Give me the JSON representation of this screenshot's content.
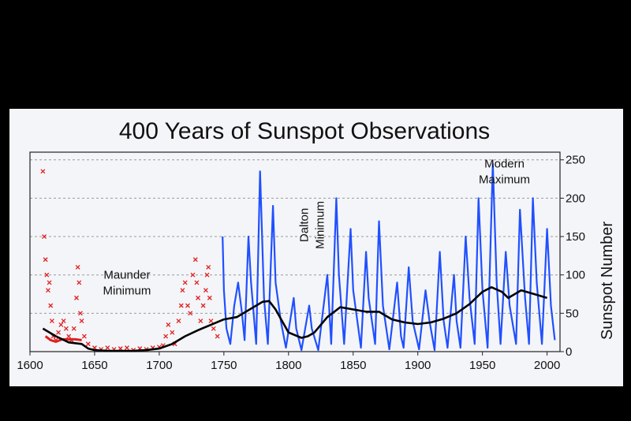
{
  "chart_data": {
    "type": "line",
    "title": "400 Years of Sunspot Observations",
    "ylabel": "Sunspot Number",
    "xlim": [
      1600,
      2010
    ],
    "ylim": [
      0,
      260
    ],
    "x_ticks": [
      1600,
      1650,
      1700,
      1750,
      1800,
      1850,
      1900,
      1950,
      2000
    ],
    "y_ticks": [
      0,
      50,
      100,
      150,
      200,
      250
    ],
    "y_axis_side": "right",
    "grid": "horizontal dashed",
    "colors": {
      "early_observations": "#e02020",
      "group_sunspot": "#2050ff",
      "smoothed": "#000000"
    },
    "annotations": [
      {
        "lines": [
          "Maunder",
          "Minimum"
        ],
        "x": 1675,
        "y": 95,
        "orientation": "horizontal"
      },
      {
        "lines": [
          "Dalton",
          "Minimum"
        ],
        "x": 1815,
        "y": 165,
        "orientation": "vertical"
      },
      {
        "lines": [
          "Modern",
          "Maximum"
        ],
        "x": 1967,
        "y": 240,
        "orientation": "horizontal"
      }
    ],
    "series": [
      {
        "kind": "scatter",
        "points": [
          [
            1610,
            235
          ],
          [
            1611,
            150
          ],
          [
            1612,
            120
          ],
          [
            1613,
            100
          ],
          [
            1614,
            80
          ],
          [
            1615,
            90
          ],
          [
            1616,
            60
          ],
          [
            1617,
            40
          ],
          [
            1618,
            20
          ],
          [
            1620,
            15
          ],
          [
            1622,
            25
          ],
          [
            1624,
            35
          ],
          [
            1626,
            40
          ],
          [
            1628,
            30
          ],
          [
            1630,
            20
          ],
          [
            1632,
            15
          ],
          [
            1634,
            30
          ],
          [
            1636,
            70
          ],
          [
            1637,
            110
          ],
          [
            1638,
            90
          ],
          [
            1639,
            50
          ],
          [
            1640,
            40
          ],
          [
            1642,
            20
          ],
          [
            1645,
            10
          ],
          [
            1650,
            5
          ],
          [
            1655,
            3
          ],
          [
            1660,
            5
          ],
          [
            1665,
            3
          ],
          [
            1670,
            4
          ],
          [
            1675,
            5
          ],
          [
            1680,
            2
          ],
          [
            1685,
            4
          ],
          [
            1690,
            3
          ],
          [
            1695,
            5
          ],
          [
            1700,
            6
          ],
          [
            1703,
            8
          ],
          [
            1705,
            20
          ],
          [
            1707,
            35
          ],
          [
            1710,
            25
          ],
          [
            1712,
            10
          ],
          [
            1715,
            40
          ],
          [
            1717,
            60
          ],
          [
            1718,
            80
          ],
          [
            1720,
            90
          ],
          [
            1722,
            60
          ],
          [
            1724,
            50
          ],
          [
            1726,
            100
          ],
          [
            1728,
            120
          ],
          [
            1729,
            90
          ],
          [
            1730,
            70
          ],
          [
            1732,
            40
          ],
          [
            1734,
            60
          ],
          [
            1736,
            80
          ],
          [
            1737,
            100
          ],
          [
            1738,
            110
          ],
          [
            1739,
            70
          ],
          [
            1740,
            40
          ],
          [
            1742,
            30
          ],
          [
            1745,
            20
          ]
        ]
      },
      {
        "kind": "line",
        "points": [
          [
            1612,
            20
          ],
          [
            1616,
            15
          ],
          [
            1620,
            13
          ],
          [
            1625,
            16
          ],
          [
            1630,
            16
          ],
          [
            1635,
            16
          ],
          [
            1640,
            15
          ]
        ]
      },
      {
        "kind": "line",
        "points": [
          [
            1749,
            150
          ],
          [
            1750,
            80
          ],
          [
            1752,
            30
          ],
          [
            1755,
            10
          ],
          [
            1758,
            60
          ],
          [
            1761,
            90
          ],
          [
            1764,
            50
          ],
          [
            1766,
            15
          ],
          [
            1769,
            150
          ],
          [
            1771,
            90
          ],
          [
            1775,
            10
          ],
          [
            1778,
            235
          ],
          [
            1779,
            180
          ],
          [
            1781,
            70
          ],
          [
            1784,
            10
          ],
          [
            1788,
            190
          ],
          [
            1790,
            90
          ],
          [
            1794,
            40
          ],
          [
            1798,
            5
          ],
          [
            1804,
            70
          ],
          [
            1806,
            30
          ],
          [
            1810,
            2
          ],
          [
            1816,
            60
          ],
          [
            1818,
            30
          ],
          [
            1823,
            2
          ],
          [
            1830,
            100
          ],
          [
            1833,
            10
          ],
          [
            1837,
            200
          ],
          [
            1839,
            100
          ],
          [
            1843,
            10
          ],
          [
            1848,
            160
          ],
          [
            1850,
            80
          ],
          [
            1856,
            5
          ],
          [
            1860,
            130
          ],
          [
            1862,
            70
          ],
          [
            1867,
            10
          ],
          [
            1870,
            170
          ],
          [
            1873,
            60
          ],
          [
            1878,
            3
          ],
          [
            1884,
            90
          ],
          [
            1887,
            20
          ],
          [
            1889,
            5
          ],
          [
            1893,
            110
          ],
          [
            1896,
            40
          ],
          [
            1901,
            3
          ],
          [
            1906,
            80
          ],
          [
            1909,
            40
          ],
          [
            1913,
            2
          ],
          [
            1917,
            130
          ],
          [
            1920,
            40
          ],
          [
            1923,
            5
          ],
          [
            1928,
            100
          ],
          [
            1930,
            40
          ],
          [
            1933,
            5
          ],
          [
            1937,
            150
          ],
          [
            1940,
            70
          ],
          [
            1944,
            10
          ],
          [
            1947,
            200
          ],
          [
            1950,
            80
          ],
          [
            1954,
            5
          ],
          [
            1958,
            245
          ],
          [
            1961,
            90
          ],
          [
            1964,
            10
          ],
          [
            1968,
            130
          ],
          [
            1971,
            60
          ],
          [
            1976,
            10
          ],
          [
            1979,
            185
          ],
          [
            1983,
            70
          ],
          [
            1986,
            10
          ],
          [
            1989,
            200
          ],
          [
            1992,
            90
          ],
          [
            1996,
            10
          ],
          [
            2000,
            160
          ],
          [
            2003,
            60
          ],
          [
            2006,
            15
          ]
        ]
      },
      {
        "kind": "line",
        "points": [
          [
            1610,
            30
          ],
          [
            1620,
            20
          ],
          [
            1630,
            12
          ],
          [
            1640,
            10
          ],
          [
            1645,
            4
          ],
          [
            1650,
            2
          ],
          [
            1660,
            1
          ],
          [
            1670,
            1
          ],
          [
            1680,
            1
          ],
          [
            1690,
            2
          ],
          [
            1700,
            4
          ],
          [
            1710,
            10
          ],
          [
            1720,
            20
          ],
          [
            1730,
            28
          ],
          [
            1740,
            35
          ],
          [
            1750,
            42
          ],
          [
            1760,
            45
          ],
          [
            1770,
            55
          ],
          [
            1780,
            65
          ],
          [
            1785,
            66
          ],
          [
            1790,
            55
          ],
          [
            1795,
            40
          ],
          [
            1800,
            25
          ],
          [
            1810,
            18
          ],
          [
            1815,
            20
          ],
          [
            1820,
            25
          ],
          [
            1830,
            45
          ],
          [
            1840,
            58
          ],
          [
            1850,
            55
          ],
          [
            1860,
            52
          ],
          [
            1870,
            52
          ],
          [
            1880,
            42
          ],
          [
            1890,
            38
          ],
          [
            1900,
            36
          ],
          [
            1910,
            38
          ],
          [
            1920,
            43
          ],
          [
            1930,
            50
          ],
          [
            1940,
            62
          ],
          [
            1950,
            78
          ],
          [
            1957,
            84
          ],
          [
            1965,
            78
          ],
          [
            1970,
            70
          ],
          [
            1980,
            80
          ],
          [
            1990,
            75
          ],
          [
            2000,
            70
          ]
        ]
      }
    ]
  }
}
